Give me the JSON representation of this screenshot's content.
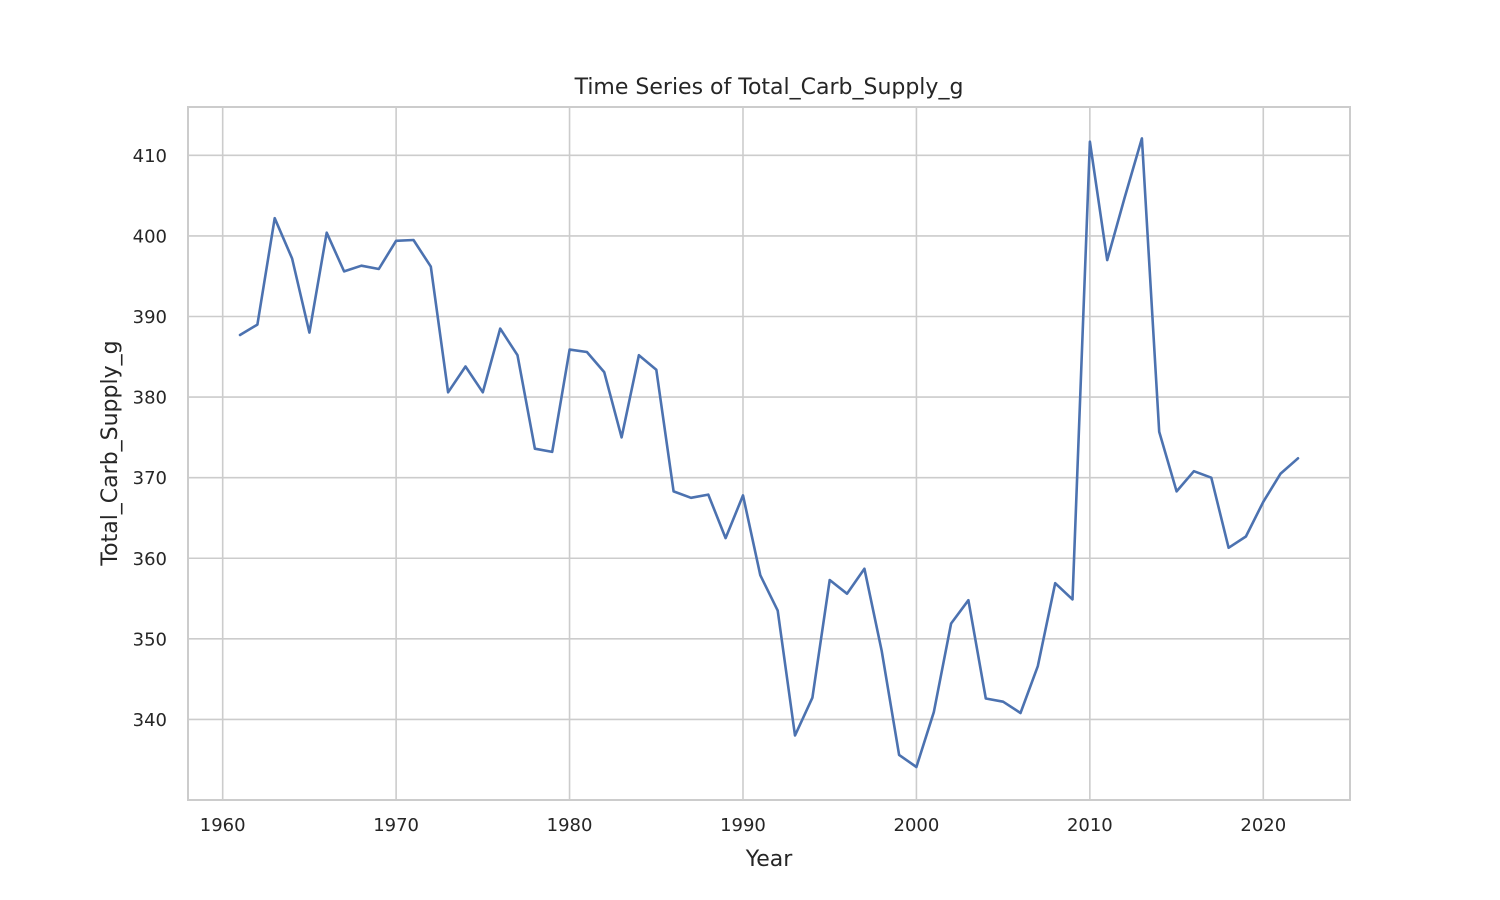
{
  "chart_data": {
    "type": "line",
    "title": "Time Series of Total_Carb_Supply_g",
    "xlabel": "Year",
    "ylabel": "Total_Carb_Supply_g",
    "xlim": [
      1958,
      2025
    ],
    "ylim": [
      330,
      416
    ],
    "xticks": [
      1960,
      1970,
      1980,
      1990,
      2000,
      2010,
      2020
    ],
    "yticks": [
      340,
      350,
      360,
      370,
      380,
      390,
      400,
      410
    ],
    "grid": true,
    "colors": {
      "series": "#4c72b0",
      "grid": "#cccccc"
    },
    "series": [
      {
        "x": [
          1961,
          1962,
          1963,
          1964,
          1965,
          1966,
          1967,
          1968,
          1969,
          1970,
          1971,
          1972,
          1973,
          1974,
          1975,
          1976,
          1977,
          1978,
          1979,
          1980,
          1981,
          1982,
          1983,
          1984,
          1985,
          1986,
          1987,
          1988,
          1989,
          1990,
          1991,
          1992,
          1993,
          1994,
          1995,
          1996,
          1997,
          1998,
          1999,
          2000,
          2001,
          2002,
          2003,
          2004,
          2005,
          2006,
          2007,
          2008,
          2009,
          2010,
          2011,
          2012,
          2013,
          2014,
          2015,
          2016,
          2017,
          2018,
          2019,
          2020,
          2021,
          2022
        ],
        "values": [
          387.7,
          389.0,
          402.2,
          397.2,
          388.0,
          400.4,
          395.6,
          396.3,
          395.9,
          399.4,
          399.5,
          396.2,
          380.6,
          383.8,
          380.6,
          388.5,
          385.2,
          373.6,
          373.2,
          385.9,
          385.6,
          383.1,
          375.0,
          385.2,
          383.4,
          368.3,
          367.5,
          367.9,
          362.5,
          367.8,
          357.9,
          353.5,
          338.0,
          342.7,
          357.3,
          355.6,
          358.7,
          348.5,
          335.6,
          334.1,
          340.9,
          351.9,
          354.8,
          342.6,
          342.2,
          340.8,
          346.6,
          356.9,
          354.9,
          411.7,
          397.0,
          404.7,
          412.1,
          375.7,
          368.3,
          370.8,
          370.0,
          361.3,
          362.7,
          367.0,
          370.5,
          372.4
        ]
      }
    ]
  }
}
